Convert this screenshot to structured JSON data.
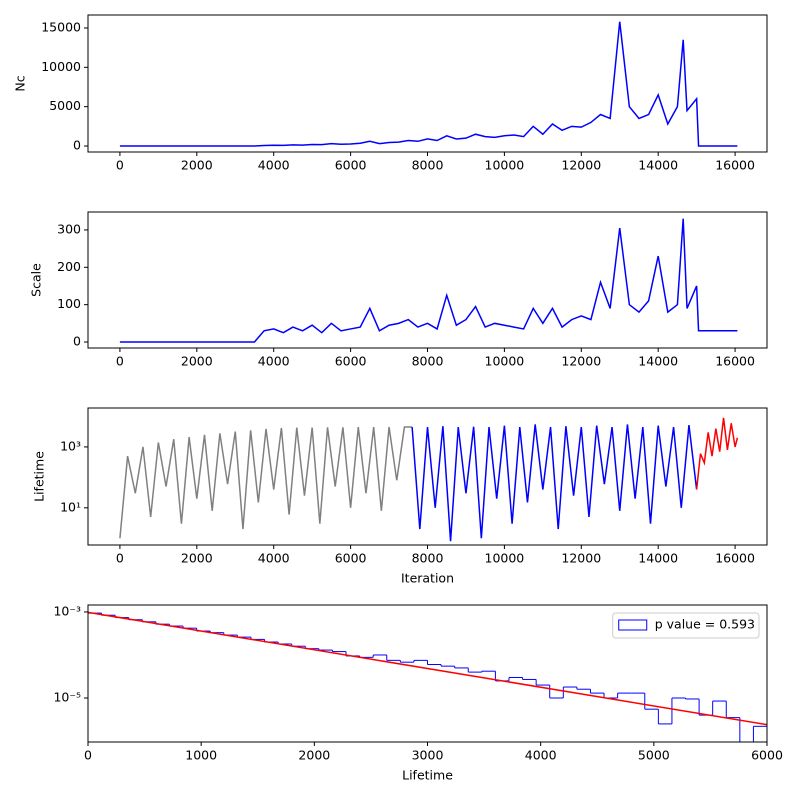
{
  "chart_data": [
    {
      "type": "line",
      "ylabel": "Nc",
      "xlim": [
        -830,
        16830
      ],
      "xticks": [
        0,
        2000,
        4000,
        6000,
        8000,
        10000,
        12000,
        14000,
        16000
      ],
      "ylim": [
        -760,
        16650
      ],
      "yticks": [
        0,
        5000,
        10000,
        15000
      ],
      "series": [
        {
          "color": "#0000ff",
          "x": [
            0,
            250,
            500,
            750,
            1000,
            1250,
            1500,
            1750,
            2000,
            2250,
            2500,
            2750,
            3000,
            3250,
            3500,
            3750,
            4000,
            4250,
            4500,
            4750,
            5000,
            5250,
            5500,
            5750,
            6000,
            6250,
            6500,
            6750,
            7000,
            7250,
            7500,
            7750,
            8000,
            8250,
            8500,
            8750,
            9000,
            9250,
            9500,
            9750,
            10000,
            10250,
            10500,
            10750,
            11000,
            11250,
            11500,
            11750,
            12000,
            12250,
            12500,
            12750,
            13000,
            13250,
            13500,
            13750,
            14000,
            14250,
            14500,
            14650,
            14750,
            15000,
            15050,
            16060
          ],
          "values": [
            0,
            0,
            0,
            0,
            0,
            0,
            0,
            0,
            0,
            0,
            0,
            0,
            0,
            0,
            0,
            60,
            100,
            80,
            150,
            120,
            200,
            180,
            300,
            220,
            250,
            350,
            600,
            300,
            450,
            500,
            700,
            600,
            900,
            700,
            1300,
            900,
            1000,
            1500,
            1200,
            1100,
            1300,
            1400,
            1200,
            2500,
            1500,
            2800,
            2000,
            2500,
            2400,
            3000,
            4000,
            3500,
            15800,
            5000,
            3500,
            4000,
            6500,
            2800,
            5000,
            13500,
            4500,
            6000,
            0,
            0
          ]
        }
      ]
    },
    {
      "type": "line",
      "ylabel": "Scale",
      "xlim": [
        -830,
        16830
      ],
      "xticks": [
        0,
        2000,
        4000,
        6000,
        8000,
        10000,
        12000,
        14000,
        16000
      ],
      "ylim": [
        -16,
        348
      ],
      "yticks": [
        0,
        100,
        200,
        300
      ],
      "series": [
        {
          "color": "#0000ff",
          "x": [
            0,
            250,
            500,
            750,
            1000,
            1250,
            1500,
            1750,
            2000,
            2250,
            2500,
            2750,
            3000,
            3250,
            3500,
            3750,
            4000,
            4250,
            4500,
            4750,
            5000,
            5250,
            5500,
            5750,
            6000,
            6250,
            6500,
            6750,
            7000,
            7250,
            7500,
            7750,
            8000,
            8250,
            8500,
            8750,
            9000,
            9250,
            9500,
            9750,
            10000,
            10250,
            10500,
            10750,
            11000,
            11250,
            11500,
            11750,
            12000,
            12250,
            12500,
            12750,
            13000,
            13250,
            13500,
            13750,
            14000,
            14250,
            14500,
            14650,
            14750,
            15000,
            15050,
            16060
          ],
          "values": [
            0,
            0,
            0,
            0,
            0,
            0,
            0,
            0,
            0,
            0,
            0,
            0,
            0,
            0,
            0,
            30,
            35,
            25,
            40,
            30,
            45,
            25,
            50,
            30,
            35,
            40,
            90,
            30,
            45,
            50,
            60,
            40,
            50,
            35,
            125,
            45,
            60,
            95,
            40,
            50,
            45,
            40,
            35,
            90,
            50,
            90,
            40,
            60,
            70,
            60,
            160,
            90,
            305,
            100,
            80,
            110,
            230,
            80,
            100,
            330,
            90,
            150,
            30,
            30
          ]
        }
      ]
    },
    {
      "type": "line",
      "ylabel": "Lifetime",
      "xlabel": "Iteration",
      "yscale": "log",
      "xlim": [
        -830,
        16830
      ],
      "xticks": [
        0,
        2000,
        4000,
        6000,
        8000,
        10000,
        12000,
        14000,
        16000
      ],
      "ylim": [
        0.6,
        19000
      ],
      "yticks": [
        {
          "value": 10,
          "label": "10¹"
        },
        {
          "value": 1000,
          "label": "10³"
        }
      ],
      "series": [
        {
          "color": "#808080",
          "x": [
            0,
            200,
            400,
            600,
            800,
            1000,
            1200,
            1400,
            1600,
            1800,
            2000,
            2200,
            2400,
            2600,
            2800,
            3000,
            3200,
            3400,
            3600,
            3800,
            4000,
            4200,
            4400,
            4600,
            4800,
            5000,
            5200,
            5400,
            5600,
            5800,
            6000,
            6200,
            6400,
            6600,
            6800,
            7000,
            7200,
            7400,
            7600
          ],
          "values": [
            1,
            500,
            30,
            1000,
            5,
            1400,
            50,
            1800,
            3,
            2100,
            20,
            2500,
            8,
            2800,
            60,
            3200,
            2,
            3500,
            15,
            3900,
            40,
            4200,
            6,
            4300,
            25,
            4300,
            3,
            4400,
            50,
            4400,
            10,
            4500,
            30,
            4500,
            8,
            4500,
            80,
            4500,
            4500
          ]
        },
        {
          "color": "#0000ff",
          "x": [
            7600,
            7800,
            8000,
            8200,
            8400,
            8600,
            8800,
            9000,
            9200,
            9400,
            9600,
            9800,
            10000,
            10200,
            10400,
            10600,
            10800,
            11000,
            11200,
            11400,
            11600,
            11800,
            12000,
            12200,
            12400,
            12600,
            12800,
            13000,
            13200,
            13400,
            13600,
            13800,
            14000,
            14200,
            14400,
            14600,
            14800,
            15000
          ],
          "values": [
            4500,
            2,
            4500,
            10,
            4800,
            0.8,
            4500,
            30,
            4600,
            1,
            4500,
            20,
            5000,
            3,
            4500,
            15,
            5500,
            40,
            4500,
            2,
            4800,
            25,
            4500,
            5,
            5000,
            60,
            4500,
            8,
            5500,
            20,
            4500,
            3,
            5000,
            50,
            4500,
            10,
            5200,
            40
          ]
        },
        {
          "color": "#ff0000",
          "x": [
            15000,
            15100,
            15200,
            15300,
            15400,
            15500,
            15600,
            15700,
            15800,
            15900,
            16000,
            16060
          ],
          "values": [
            40,
            600,
            300,
            3000,
            500,
            4000,
            700,
            9000,
            800,
            6000,
            1000,
            2000
          ]
        }
      ]
    },
    {
      "type": "histogram",
      "xlabel": "Lifetime",
      "yscale": "log",
      "legend": "upper right",
      "xlim": [
        0,
        6000
      ],
      "xticks": [
        0,
        1000,
        2000,
        3000,
        4000,
        5000,
        6000
      ],
      "ylim": [
        9.5e-07,
        0.00145
      ],
      "yticks": [
        {
          "value": 1e-05,
          "label": "10⁻⁵"
        },
        {
          "value": 0.001,
          "label": "10⁻³"
        }
      ],
      "bins": [
        0,
        120,
        240,
        360,
        480,
        600,
        720,
        840,
        960,
        1080,
        1200,
        1320,
        1440,
        1560,
        1680,
        1800,
        1920,
        2040,
        2160,
        2280,
        2400,
        2520,
        2640,
        2760,
        2880,
        3000,
        3120,
        3240,
        3360,
        3480,
        3600,
        3720,
        3840,
        3960,
        4080,
        4200,
        4320,
        4440,
        4560,
        4680,
        4800,
        4920,
        5040,
        5160,
        5280,
        5400,
        5520,
        5640,
        5760,
        5880,
        6000
      ],
      "series": [
        {
          "name": "p value = 0.593",
          "color": "#0000ff",
          "values": [
            0.00094,
            0.00084,
            0.00074,
            0.00066,
            0.00059,
            0.00052,
            0.00047,
            0.00042,
            0.00036,
            0.00033,
            0.00029,
            0.00026,
            0.00023,
            0.0002,
            0.00018,
            0.00016,
            0.00014,
            0.00013,
            0.00012,
            9.5e-05,
            8.8e-05,
            0.0001,
            7.5e-05,
            6.8e-05,
            7.5e-05,
            6e-05,
            5.5e-05,
            5e-05,
            4e-05,
            4.2e-05,
            2.5e-05,
            3e-05,
            2.7e-05,
            2e-05,
            1e-05,
            1.8e-05,
            1.6e-05,
            1.3e-05,
            1e-05,
            1.3e-05,
            1.3e-05,
            5.5e-06,
            2.5e-06,
            1e-05,
            9.5e-06,
            4e-06,
            8.5e-06,
            3.5e-06,
            0,
            2.2e-06
          ]
        }
      ],
      "fit": {
        "color": "#ff0000",
        "x": [
          0,
          6000
        ],
        "values": [
          0.00098,
          2.4e-06
        ]
      }
    }
  ]
}
